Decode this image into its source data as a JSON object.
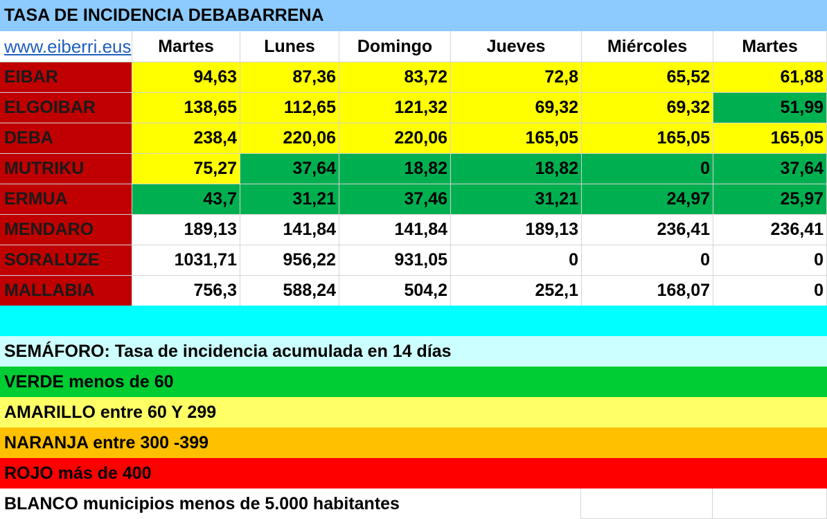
{
  "title": "TASA DE INCIDENCIA DEBABARRENA",
  "link_text": "www.eiberri.eus",
  "days": [
    "Martes",
    "Lunes",
    "Domingo",
    "Jueves",
    "Miércoles",
    "Martes"
  ],
  "colors": {
    "title_bg": "#8dcbff",
    "town_bg": "#c00000",
    "yellow": "#ffff00",
    "green": "#00b050",
    "white": "#ffffff",
    "cyan": "#00ffff",
    "light_cyan": "#ccffff",
    "legend_green": "#00cc33",
    "legend_yellow": "#ffff66",
    "legend_orange": "#ffc000",
    "legend_red": "#ff0000"
  },
  "rows": [
    {
      "town": "EIBAR",
      "values": [
        "94,63",
        "87,36",
        "83,72",
        "72,8",
        "65,52",
        "61,88"
      ],
      "status": [
        "yellow",
        "yellow",
        "yellow",
        "yellow",
        "yellow",
        "yellow"
      ]
    },
    {
      "town": "ELGOIBAR",
      "values": [
        "138,65",
        "112,65",
        "121,32",
        "69,32",
        "69,32",
        "51,99"
      ],
      "status": [
        "yellow",
        "yellow",
        "yellow",
        "yellow",
        "yellow",
        "green"
      ]
    },
    {
      "town": "DEBA",
      "values": [
        "238,4",
        "220,06",
        "220,06",
        "165,05",
        "165,05",
        "165,05"
      ],
      "status": [
        "yellow",
        "yellow",
        "yellow",
        "yellow",
        "yellow",
        "yellow"
      ]
    },
    {
      "town": "MUTRIKU",
      "values": [
        "75,27",
        "37,64",
        "18,82",
        "18,82",
        "0",
        "37,64"
      ],
      "status": [
        "yellow",
        "green",
        "green",
        "green",
        "green",
        "green"
      ]
    },
    {
      "town": "ERMUA",
      "values": [
        "43,7",
        "31,21",
        "37,46",
        "31,21",
        "24,97",
        "25,97"
      ],
      "status": [
        "green",
        "green",
        "green",
        "green",
        "green",
        "green"
      ]
    },
    {
      "town": "MENDARO",
      "values": [
        "189,13",
        "141,84",
        "141,84",
        "189,13",
        "236,41",
        "236,41"
      ],
      "status": [
        "white",
        "white",
        "white",
        "white",
        "white",
        "white"
      ]
    },
    {
      "town": "SORALUZE",
      "values": [
        "1031,71",
        "956,22",
        "931,05",
        "0",
        "0",
        "0"
      ],
      "status": [
        "white",
        "white",
        "white",
        "white",
        "white",
        "white"
      ]
    },
    {
      "town": "MALLABIA",
      "values": [
        "756,3",
        "588,24",
        "504,2",
        "252,1",
        "168,07",
        "0"
      ],
      "status": [
        "white",
        "white",
        "white",
        "white",
        "white",
        "white"
      ]
    }
  ],
  "legend": {
    "heading": "SEMÁFORO:  Tasa de incidencia acumulada en 14 días",
    "verde": "VERDE menos de 60",
    "amarillo": "AMARILLO entre 60 Y 299",
    "naranja": "NARANJA entre 300 -399",
    "rojo": "ROJO más de 400",
    "blanco": "BLANCO municipios menos de 5.000 habitantes"
  }
}
